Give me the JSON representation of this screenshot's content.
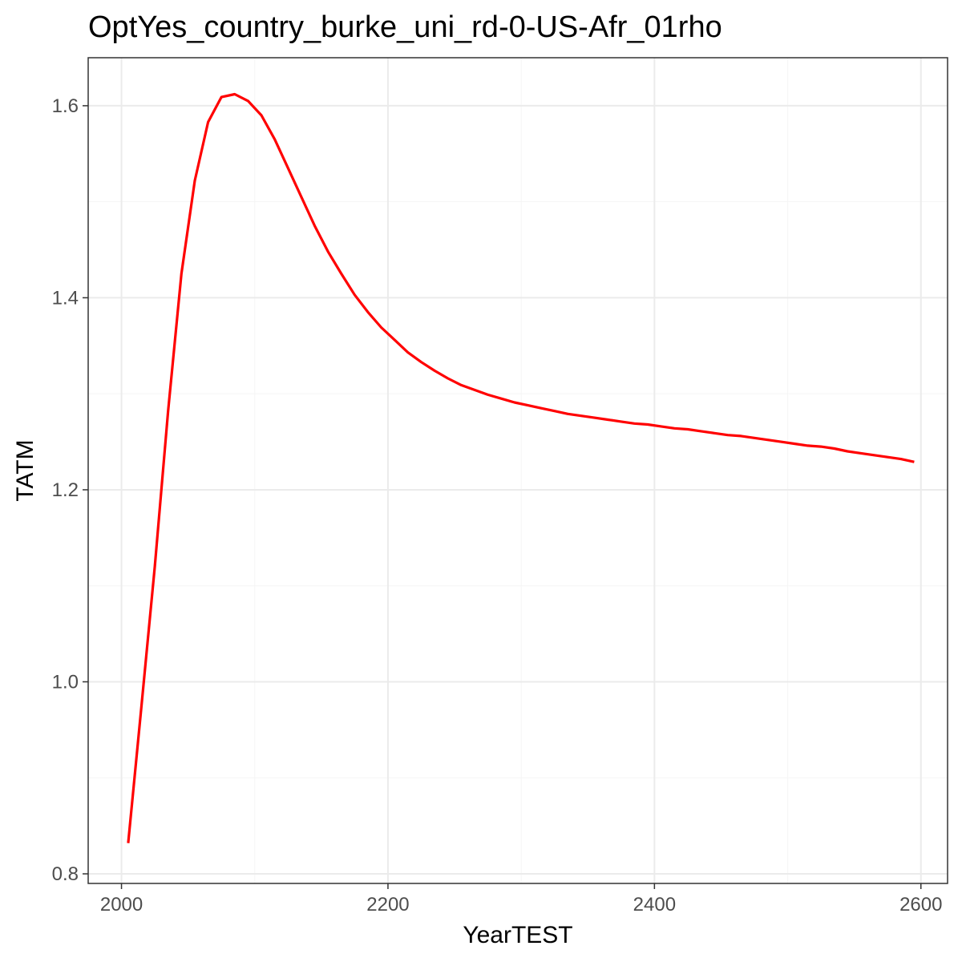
{
  "chart_data": {
    "type": "line",
    "title": "OptYes_country_burke_uni_rd-0-US-Afr_01rho",
    "xlabel": "YearTEST",
    "ylabel": "TATM",
    "xlim": [
      1975,
      2620
    ],
    "ylim": [
      0.79,
      1.65
    ],
    "x_ticks": [
      2000,
      2200,
      2400,
      2600
    ],
    "y_ticks": [
      0.8,
      1.0,
      1.2,
      1.4,
      1.6
    ],
    "x_tick_labels": [
      "2000",
      "2200",
      "2400",
      "2600"
    ],
    "y_tick_labels": [
      "0.8",
      "1.0",
      "1.2",
      "1.4",
      "1.6"
    ],
    "grid": true,
    "legend": "none",
    "series": [
      {
        "color": "#ff0000",
        "x": [
          2005,
          2015,
          2025,
          2035,
          2045,
          2055,
          2065,
          2075,
          2085,
          2095,
          2105,
          2115,
          2125,
          2135,
          2145,
          2155,
          2165,
          2175,
          2185,
          2195,
          2205,
          2215,
          2225,
          2235,
          2245,
          2255,
          2265,
          2275,
          2285,
          2295,
          2305,
          2315,
          2325,
          2335,
          2345,
          2355,
          2365,
          2375,
          2385,
          2395,
          2405,
          2415,
          2425,
          2435,
          2445,
          2455,
          2465,
          2475,
          2485,
          2495,
          2505,
          2515,
          2525,
          2535,
          2545,
          2555,
          2565,
          2575,
          2585,
          2595
        ],
        "values": [
          0.832,
          0.975,
          1.12,
          1.282,
          1.425,
          1.522,
          1.583,
          1.609,
          1.612,
          1.605,
          1.59,
          1.565,
          1.535,
          1.505,
          1.475,
          1.448,
          1.425,
          1.403,
          1.385,
          1.369,
          1.356,
          1.343,
          1.333,
          1.324,
          1.316,
          1.309,
          1.304,
          1.299,
          1.295,
          1.291,
          1.288,
          1.285,
          1.282,
          1.279,
          1.277,
          1.275,
          1.273,
          1.271,
          1.269,
          1.268,
          1.266,
          1.264,
          1.263,
          1.261,
          1.259,
          1.257,
          1.256,
          1.254,
          1.252,
          1.25,
          1.248,
          1.246,
          1.245,
          1.243,
          1.24,
          1.238,
          1.236,
          1.234,
          1.232,
          1.229
        ]
      }
    ]
  },
  "style": {
    "panel_border": "#333333",
    "grid_major": "#ebebeb",
    "grid_minor": "#f5f5f5",
    "tick_label_color": "#4d4d4d",
    "line_color": "#ff0000"
  }
}
